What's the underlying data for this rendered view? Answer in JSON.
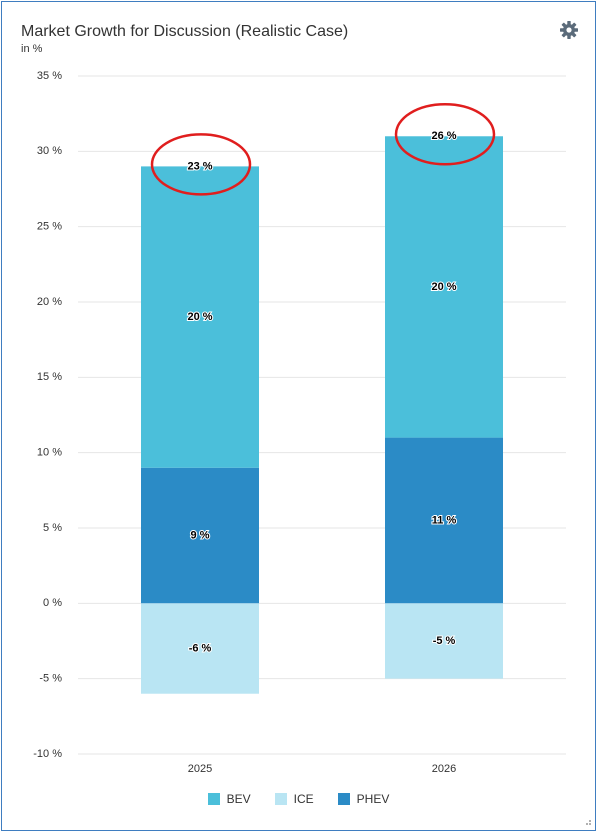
{
  "header": {
    "title": "Market Growth for Discussion (Realistic Case)",
    "subtitle": "in %"
  },
  "icons": {
    "settings": "gear-icon"
  },
  "colors": {
    "BEV": "#4bbfda",
    "ICE": "#b9e5f3",
    "PHEV": "#2b8bc6",
    "annotation": "#e01e1e"
  },
  "chart_data": {
    "type": "bar",
    "stacked": true,
    "title": "Market Growth for Discussion (Realistic Case)",
    "ylabel": "in %",
    "categories": [
      "2025",
      "2026"
    ],
    "ylim": [
      -10,
      35
    ],
    "yticks": [
      35,
      30,
      25,
      20,
      15,
      10,
      5,
      0,
      -5,
      -10
    ],
    "ytick_labels": [
      "35 %",
      "30 %",
      "25 %",
      "20 %",
      "15 %",
      "10 %",
      "5 %",
      "0 %",
      "-5 %",
      "-10 %"
    ],
    "series": [
      {
        "name": "BEV",
        "values": [
          20,
          20
        ],
        "labels": [
          "20 %",
          "20 %"
        ]
      },
      {
        "name": "ICE",
        "values": [
          -6,
          -5
        ],
        "labels": [
          "-6 %",
          "-5 %"
        ]
      },
      {
        "name": "PHEV",
        "values": [
          9,
          11
        ],
        "labels": [
          "9 %",
          "11 %"
        ]
      }
    ],
    "totals": [
      29,
      31
    ],
    "total_labels": [
      "23 %",
      "26 %"
    ],
    "legend": "bottom",
    "grid": true
  },
  "legend": {
    "items": [
      "BEV",
      "ICE",
      "PHEV"
    ]
  }
}
